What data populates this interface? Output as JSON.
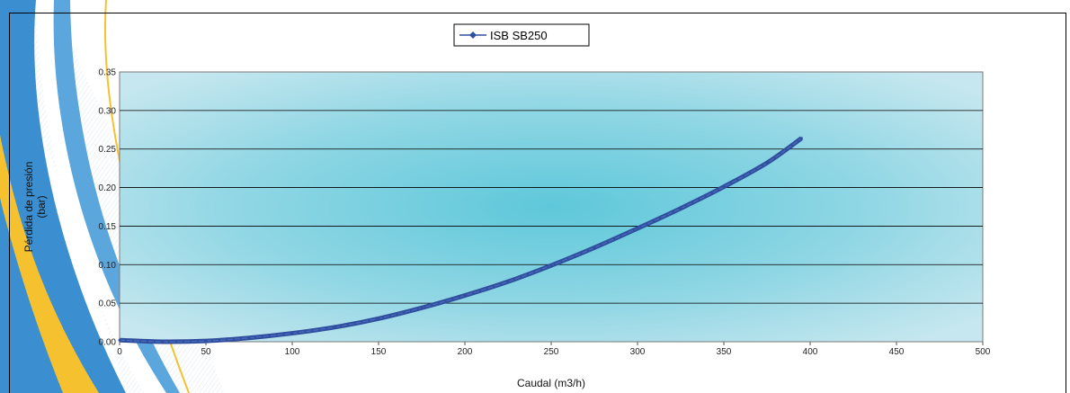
{
  "colors": {
    "series": "#2f4f9e",
    "plot_center": "#5ec8da",
    "plot_edge": "#c6e7ef",
    "deco_blue": "#3b8fd0",
    "deco_yellow": "#f6c12e"
  },
  "chart_data": {
    "type": "line",
    "title": "",
    "xlabel": "Caudal (m3/h)",
    "ylabel_lines": [
      "Pérdida de presión",
      "(bar)"
    ],
    "xlim": [
      0,
      500
    ],
    "ylim": [
      0,
      0.35
    ],
    "x_ticks": [
      0,
      50,
      100,
      150,
      200,
      250,
      300,
      350,
      400,
      450,
      500
    ],
    "y_ticks": [
      0,
      0.05,
      0.1,
      0.15,
      0.2,
      0.25,
      0.3,
      0.35
    ],
    "y_tick_labels": [
      "0.00",
      "0.05",
      "0.10",
      "0.15",
      "0.20",
      "0.25",
      "0.30",
      "0.35"
    ],
    "grid": "horizontal",
    "legend": "top-center",
    "series": [
      {
        "name": "ISB SB250",
        "x": [
          0,
          25,
          50,
          75,
          100,
          125,
          150,
          175,
          200,
          225,
          250,
          275,
          300,
          325,
          350,
          375,
          395
        ],
        "y": [
          0.002,
          0.0,
          0.001,
          0.005,
          0.011,
          0.019,
          0.03,
          0.044,
          0.06,
          0.078,
          0.099,
          0.122,
          0.147,
          0.173,
          0.201,
          0.232,
          0.264
        ]
      }
    ]
  }
}
